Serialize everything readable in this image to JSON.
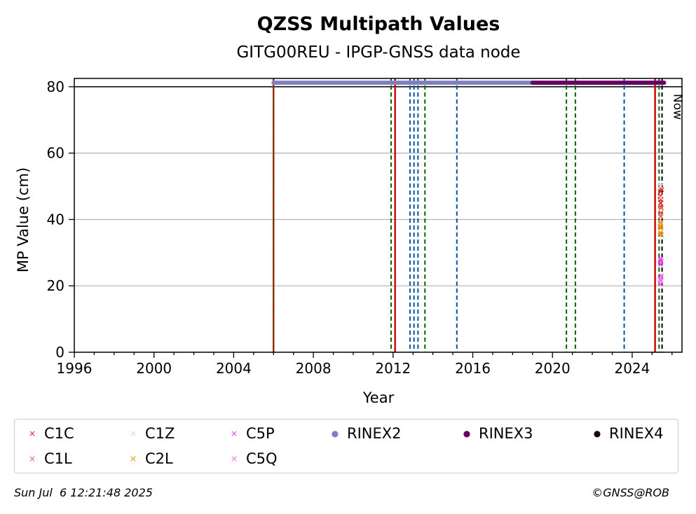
{
  "chart_data": {
    "type": "scatter",
    "title": "QZSS Multipath Values",
    "subtitle": "GITG00REU - IPGP-GNSS data node",
    "xlabel": "Year",
    "ylabel": "MP Value (cm)",
    "xlim": [
      1996,
      2026.5
    ],
    "ylim": [
      0,
      82.5
    ],
    "xticks": [
      1996,
      2000,
      2004,
      2008,
      2012,
      2016,
      2020,
      2024
    ],
    "yticks": [
      0,
      20,
      40,
      60,
      80
    ],
    "grid": "horizontal",
    "threshold_line": 80,
    "now_label": "Now",
    "now_x": 2026.1,
    "rinex_bars": [
      {
        "name": "RINEX2",
        "start": 2006.0,
        "end": 2019.0,
        "y": 81.2,
        "color": "#8080c0"
      },
      {
        "name": "RINEX3",
        "start": 2019.0,
        "end": 2025.6,
        "y": 81.2,
        "color": "#660066"
      }
    ],
    "event_lines": [
      {
        "x": 2006.0,
        "color": "#cc0000",
        "style": "solid"
      },
      {
        "x": 2006.0,
        "color": "#008000",
        "style": "dotted"
      },
      {
        "x": 2011.9,
        "color": "#006600",
        "style": "dashed"
      },
      {
        "x": 2012.1,
        "color": "#cc0000",
        "style": "solid"
      },
      {
        "x": 2012.85,
        "color": "#0055aa",
        "style": "dashed"
      },
      {
        "x": 2013.05,
        "color": "#0055aa",
        "style": "dashed"
      },
      {
        "x": 2013.25,
        "color": "#0055aa",
        "style": "dashed"
      },
      {
        "x": 2013.6,
        "color": "#006600",
        "style": "dashed"
      },
      {
        "x": 2015.2,
        "color": "#0055aa",
        "style": "dashed"
      },
      {
        "x": 2020.7,
        "color": "#006600",
        "style": "dashed"
      },
      {
        "x": 2021.15,
        "color": "#006600",
        "style": "dashed"
      },
      {
        "x": 2023.6,
        "color": "#0055aa",
        "style": "dashed"
      },
      {
        "x": 2025.15,
        "color": "#cc0000",
        "style": "solid"
      },
      {
        "x": 2025.35,
        "color": "#006600",
        "style": "dashed"
      },
      {
        "x": 2025.5,
        "color": "#000000",
        "style": "dashed"
      }
    ],
    "series": [
      {
        "name": "C1C",
        "color": "#e02020",
        "marker": "x",
        "points": [
          [
            2025.4,
            47
          ],
          [
            2025.42,
            48.5
          ],
          [
            2025.45,
            46
          ],
          [
            2025.47,
            49
          ],
          [
            2025.43,
            45
          ]
        ]
      },
      {
        "name": "C1L",
        "color": "#f06050",
        "marker": "x",
        "points": [
          [
            2025.41,
            44
          ],
          [
            2025.44,
            42
          ],
          [
            2025.46,
            43.5
          ],
          [
            2025.43,
            41
          ]
        ]
      },
      {
        "name": "C1Z",
        "color": "#ffcccc",
        "marker": "x",
        "points": [
          [
            2025.42,
            50
          ],
          [
            2025.45,
            39
          ],
          [
            2025.44,
            46.5
          ]
        ]
      },
      {
        "name": "C2L",
        "color": "#ff8c00",
        "marker": "x",
        "points": [
          [
            2025.4,
            38
          ],
          [
            2025.42,
            36
          ],
          [
            2025.44,
            37.5
          ],
          [
            2025.46,
            35.5
          ],
          [
            2025.43,
            39
          ]
        ]
      },
      {
        "name": "C5P",
        "color": "#ff33ff",
        "marker": "x",
        "points": [
          [
            2025.41,
            28
          ],
          [
            2025.43,
            26.5
          ],
          [
            2025.45,
            27.5
          ]
        ]
      },
      {
        "name": "C5Q",
        "color": "#ff66ff",
        "marker": "x",
        "points": [
          [
            2025.4,
            22
          ],
          [
            2025.42,
            20.5
          ],
          [
            2025.44,
            21.5
          ],
          [
            2025.46,
            23
          ]
        ]
      }
    ]
  },
  "legend": {
    "items": [
      {
        "label": "C1C",
        "color": "#e02020",
        "marker": "×"
      },
      {
        "label": "C1Z",
        "color": "#ffcccc",
        "marker": "×"
      },
      {
        "label": "C5P",
        "color": "#ff33ff",
        "marker": "×"
      },
      {
        "label": "RINEX2",
        "color": "#8080c0",
        "marker": "●"
      },
      {
        "label": "RINEX3",
        "color": "#660066",
        "marker": "●"
      },
      {
        "label": "RINEX4",
        "color": "#1a001a",
        "marker": "●"
      },
      {
        "label": "C1L",
        "color": "#f06050",
        "marker": "×"
      },
      {
        "label": "C2L",
        "color": "#ff8c00",
        "marker": "×"
      },
      {
        "label": "C5Q",
        "color": "#ff66ff",
        "marker": "×"
      }
    ]
  },
  "footer": {
    "timestamp": "Sun Jul  6 12:21:48 2025",
    "credit": "©GNSS@ROB"
  }
}
